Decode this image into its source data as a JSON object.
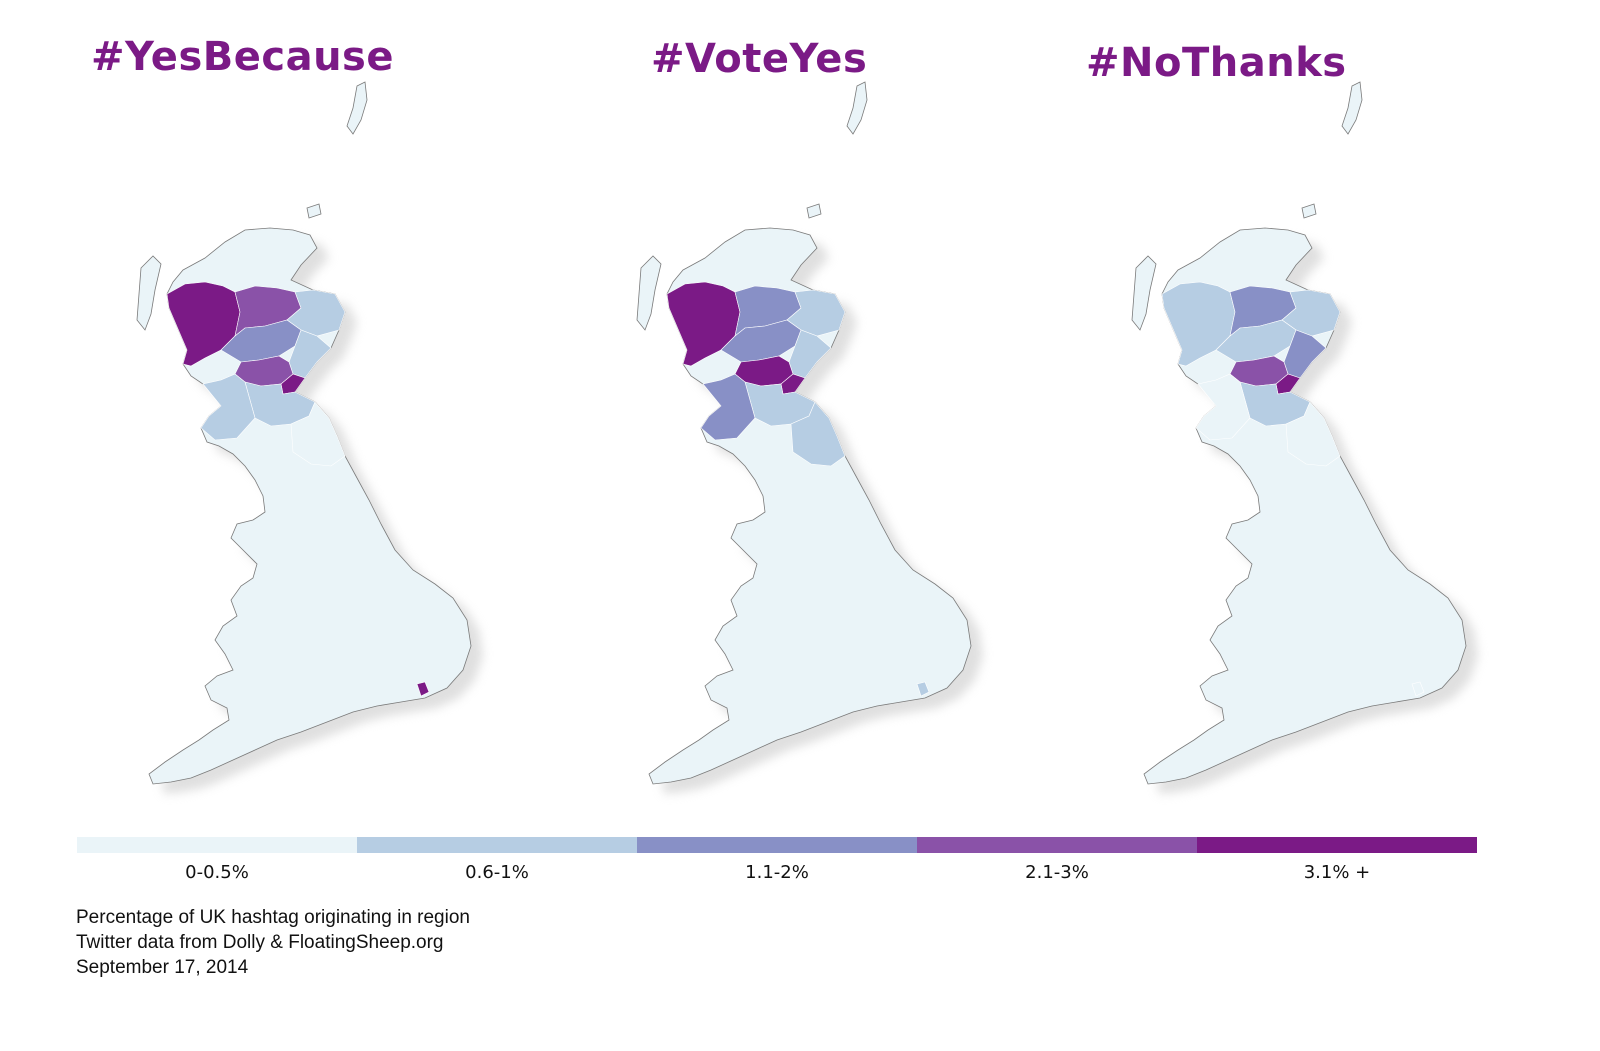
{
  "maps": [
    {
      "title": "#YesBecause",
      "shading": {
        "highlands": "#7b1a86",
        "grampian": "#8a52a8",
        "northeast": "#b6cde3",
        "central": "#8890c6",
        "fife": "#b6cde3",
        "glasgow": "#8a52a8",
        "edinburgh": "#7b1a86",
        "borders": "#b6cde3",
        "dumfries": "#b6cde3",
        "north_england": "#eaf4f8",
        "kent_spot": "#7b1a86"
      }
    },
    {
      "title": "#VoteYes",
      "shading": {
        "highlands": "#7b1a86",
        "grampian": "#8890c6",
        "northeast": "#b6cde3",
        "central": "#8890c6",
        "fife": "#b6cde3",
        "glasgow": "#7b1a86",
        "edinburgh": "#7b1a86",
        "borders": "#b6cde3",
        "dumfries": "#8890c6",
        "north_england": "#b6cde3",
        "kent_spot": "#b6cde3"
      }
    },
    {
      "title": "#NoThanks",
      "shading": {
        "highlands": "#b6cde3",
        "grampian": "#8890c6",
        "northeast": "#b6cde3",
        "central": "#b6cde3",
        "fife": "#8890c6",
        "glasgow": "#8a52a8",
        "edinburgh": "#7b1a86",
        "borders": "#b6cde3",
        "dumfries": "#eaf4f8",
        "north_england": "#eaf4f8",
        "kent_spot": "#eaf4f8"
      }
    }
  ],
  "legend": [
    {
      "label": "0-0.5%",
      "color": "#eaf4f8"
    },
    {
      "label": "0.6-1%",
      "color": "#b6cde3"
    },
    {
      "label": "1.1-2%",
      "color": "#8890c6"
    },
    {
      "label": "2.1-3%",
      "color": "#8a52a8"
    },
    {
      "label": "3.1% +",
      "color": "#7b1a86"
    }
  ],
  "caption": [
    "Percentage of UK hashtag originating in region",
    "Twitter data from Dolly & FloatingSheep.org",
    "September 17, 2014"
  ]
}
